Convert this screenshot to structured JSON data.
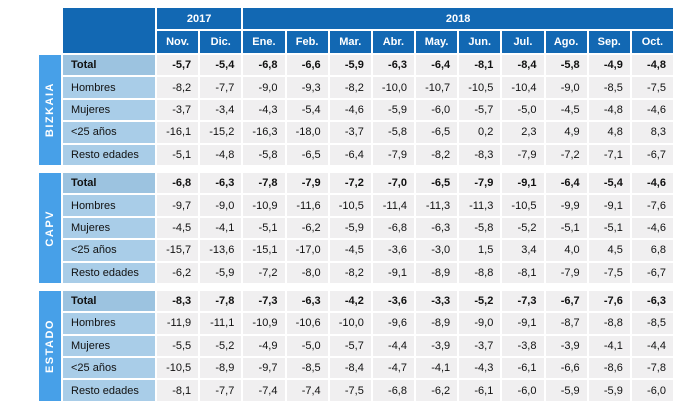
{
  "colors": {
    "header_blue": "#1268b3",
    "band_blue": "#47a0e8",
    "label_blue": "#a9cde8",
    "label_blue_total": "#9cc3e0",
    "data_bg": "#f0eff0",
    "text_dark": "#111111",
    "header_text": "#ffffff"
  },
  "header": {
    "years": [
      {
        "label": "2017",
        "span": 2
      },
      {
        "label": "2018",
        "span": 10
      }
    ],
    "months": [
      "Nov.",
      "Dic.",
      "Ene.",
      "Feb.",
      "Mar.",
      "Abr.",
      "May.",
      "Jun.",
      "Jul.",
      "Ago.",
      "Sep.",
      "Oct."
    ]
  },
  "groups": [
    {
      "name": "BIZKAIA",
      "rows": [
        {
          "label": "Total",
          "bold": true,
          "values": [
            "-5,7",
            "-5,4",
            "-6,8",
            "-6,6",
            "-5,9",
            "-6,3",
            "-6,4",
            "-8,1",
            "-8,4",
            "-5,8",
            "-4,9",
            "-4,8"
          ]
        },
        {
          "label": "Hombres",
          "bold": false,
          "values": [
            "-8,2",
            "-7,7",
            "-9,0",
            "-9,3",
            "-8,2",
            "-10,0",
            "-10,7",
            "-10,5",
            "-10,4",
            "-9,0",
            "-8,5",
            "-7,5"
          ]
        },
        {
          "label": "Mujeres",
          "bold": false,
          "values": [
            "-3,7",
            "-3,4",
            "-4,3",
            "-5,4",
            "-4,6",
            "-5,9",
            "-6,0",
            "-5,7",
            "-5,0",
            "-4,5",
            "-4,8",
            "-4,6"
          ]
        },
        {
          "label": "<25 años",
          "bold": false,
          "values": [
            "-16,1",
            "-15,2",
            "-16,3",
            "-18,0",
            "-3,7",
            "-5,8",
            "-6,5",
            "0,2",
            "2,3",
            "4,9",
            "4,8",
            "8,3"
          ]
        },
        {
          "label": "Resto edades",
          "bold": false,
          "values": [
            "-5,1",
            "-4,8",
            "-5,8",
            "-6,5",
            "-6,4",
            "-7,9",
            "-8,2",
            "-8,3",
            "-7,9",
            "-7,2",
            "-7,1",
            "-6,7"
          ]
        }
      ]
    },
    {
      "name": "CAPV",
      "rows": [
        {
          "label": "Total",
          "bold": true,
          "values": [
            "-6,8",
            "-6,3",
            "-7,8",
            "-7,9",
            "-7,2",
            "-7,0",
            "-6,5",
            "-7,9",
            "-9,1",
            "-6,4",
            "-5,4",
            "-4,6"
          ]
        },
        {
          "label": "Hombres",
          "bold": false,
          "values": [
            "-9,7",
            "-9,0",
            "-10,9",
            "-11,6",
            "-10,5",
            "-11,4",
            "-11,3",
            "-11,3",
            "-10,5",
            "-9,9",
            "-9,1",
            "-7,6"
          ]
        },
        {
          "label": "Mujeres",
          "bold": false,
          "values": [
            "-4,5",
            "-4,1",
            "-5,1",
            "-6,2",
            "-5,9",
            "-6,8",
            "-6,3",
            "-5,8",
            "-5,2",
            "-5,1",
            "-5,1",
            "-4,6"
          ]
        },
        {
          "label": "<25 años",
          "bold": false,
          "values": [
            "-15,7",
            "-13,6",
            "-15,1",
            "-17,0",
            "-4,5",
            "-3,6",
            "-3,0",
            "1,5",
            "3,4",
            "4,0",
            "4,5",
            "6,8"
          ]
        },
        {
          "label": "Resto edades",
          "bold": false,
          "values": [
            "-6,2",
            "-5,9",
            "-7,2",
            "-8,0",
            "-8,2",
            "-9,1",
            "-8,9",
            "-8,8",
            "-8,1",
            "-7,9",
            "-7,5",
            "-6,7"
          ]
        }
      ]
    },
    {
      "name": "ESTADO",
      "rows": [
        {
          "label": "Total",
          "bold": true,
          "values": [
            "-8,3",
            "-7,8",
            "-7,3",
            "-6,3",
            "-4,2",
            "-3,6",
            "-3,3",
            "-5,2",
            "-7,3",
            "-6,7",
            "-7,6",
            "-6,3"
          ]
        },
        {
          "label": "Hombres",
          "bold": false,
          "values": [
            "-11,9",
            "-11,1",
            "-10,9",
            "-10,6",
            "-10,0",
            "-9,6",
            "-8,9",
            "-9,0",
            "-9,1",
            "-8,7",
            "-8,8",
            "-8,5"
          ]
        },
        {
          "label": "Mujeres",
          "bold": false,
          "values": [
            "-5,5",
            "-5,2",
            "-4,9",
            "-5,0",
            "-5,7",
            "-4,4",
            "-3,9",
            "-3,7",
            "-3,8",
            "-3,9",
            "-4,1",
            "-4,4"
          ]
        },
        {
          "label": "<25 años",
          "bold": false,
          "values": [
            "-10,5",
            "-8,9",
            "-9,7",
            "-8,5",
            "-8,4",
            "-4,7",
            "-4,1",
            "-4,3",
            "-6,1",
            "-6,6",
            "-8,6",
            "-7,8"
          ]
        },
        {
          "label": "Resto edades",
          "bold": false,
          "values": [
            "-8,1",
            "-7,7",
            "-7,4",
            "-7,4",
            "-7,5",
            "-6,8",
            "-6,2",
            "-6,1",
            "-6,0",
            "-5,9",
            "-5,9",
            "-6,0"
          ]
        }
      ]
    }
  ],
  "chart_data": {
    "type": "table",
    "title": "",
    "columns": [
      "2017 Nov.",
      "2017 Dic.",
      "2018 Ene.",
      "2018 Feb.",
      "2018 Mar.",
      "2018 Abr.",
      "2018 May.",
      "2018 Jun.",
      "2018 Jul.",
      "2018 Ago.",
      "2018 Sep.",
      "2018 Oct."
    ],
    "rows": [
      {
        "group": "BIZKAIA",
        "label": "Total",
        "values": [
          -5.7,
          -5.4,
          -6.8,
          -6.6,
          -5.9,
          -6.3,
          -6.4,
          -8.1,
          -8.4,
          -5.8,
          -4.9,
          -4.8
        ]
      },
      {
        "group": "BIZKAIA",
        "label": "Hombres",
        "values": [
          -8.2,
          -7.7,
          -9.0,
          -9.3,
          -8.2,
          -10.0,
          -10.7,
          -10.5,
          -10.4,
          -9.0,
          -8.5,
          -7.5
        ]
      },
      {
        "group": "BIZKAIA",
        "label": "Mujeres",
        "values": [
          -3.7,
          -3.4,
          -4.3,
          -5.4,
          -4.6,
          -5.9,
          -6.0,
          -5.7,
          -5.0,
          -4.5,
          -4.8,
          -4.6
        ]
      },
      {
        "group": "BIZKAIA",
        "label": "<25 años",
        "values": [
          -16.1,
          -15.2,
          -16.3,
          -18.0,
          -3.7,
          -5.8,
          -6.5,
          0.2,
          2.3,
          4.9,
          4.8,
          8.3
        ]
      },
      {
        "group": "BIZKAIA",
        "label": "Resto edades",
        "values": [
          -5.1,
          -4.8,
          -5.8,
          -6.5,
          -6.4,
          -7.9,
          -8.2,
          -8.3,
          -7.9,
          -7.2,
          -7.1,
          -6.7
        ]
      },
      {
        "group": "CAPV",
        "label": "Total",
        "values": [
          -6.8,
          -6.3,
          -7.8,
          -7.9,
          -7.2,
          -7.0,
          -6.5,
          -7.9,
          -9.1,
          -6.4,
          -5.4,
          -4.6
        ]
      },
      {
        "group": "CAPV",
        "label": "Hombres",
        "values": [
          -9.7,
          -9.0,
          -10.9,
          -11.6,
          -10.5,
          -11.4,
          -11.3,
          -11.3,
          -10.5,
          -9.9,
          -9.1,
          -7.6
        ]
      },
      {
        "group": "CAPV",
        "label": "Mujeres",
        "values": [
          -4.5,
          -4.1,
          -5.1,
          -6.2,
          -5.9,
          -6.8,
          -6.3,
          -5.8,
          -5.2,
          -5.1,
          -5.1,
          -4.6
        ]
      },
      {
        "group": "CAPV",
        "label": "<25 años",
        "values": [
          -15.7,
          -13.6,
          -15.1,
          -17.0,
          -4.5,
          -3.6,
          -3.0,
          1.5,
          3.4,
          4.0,
          4.5,
          6.8
        ]
      },
      {
        "group": "CAPV",
        "label": "Resto edades",
        "values": [
          -6.2,
          -5.9,
          -7.2,
          -8.0,
          -8.2,
          -9.1,
          -8.9,
          -8.8,
          -8.1,
          -7.9,
          -7.5,
          -6.7
        ]
      },
      {
        "group": "ESTADO",
        "label": "Total",
        "values": [
          -8.3,
          -7.8,
          -7.3,
          -6.3,
          -4.2,
          -3.6,
          -3.3,
          -5.2,
          -7.3,
          -6.7,
          -7.6,
          -6.3
        ]
      },
      {
        "group": "ESTADO",
        "label": "Hombres",
        "values": [
          -11.9,
          -11.1,
          -10.9,
          -10.6,
          -10.0,
          -9.6,
          -8.9,
          -9.0,
          -9.1,
          -8.7,
          -8.8,
          -8.5
        ]
      },
      {
        "group": "ESTADO",
        "label": "Mujeres",
        "values": [
          -5.5,
          -5.2,
          -4.9,
          -5.0,
          -5.7,
          -4.4,
          -3.9,
          -3.7,
          -3.8,
          -3.9,
          -4.1,
          -4.4
        ]
      },
      {
        "group": "ESTADO",
        "label": "<25 años",
        "values": [
          -10.5,
          -8.9,
          -9.7,
          -8.5,
          -8.4,
          -4.7,
          -4.1,
          -4.3,
          -6.1,
          -6.6,
          -8.6,
          -7.8
        ]
      },
      {
        "group": "ESTADO",
        "label": "Resto edades",
        "values": [
          -8.1,
          -7.7,
          -7.4,
          -7.4,
          -7.5,
          -6.8,
          -6.2,
          -6.1,
          -6.0,
          -5.9,
          -5.9,
          -6.0
        ]
      }
    ]
  }
}
